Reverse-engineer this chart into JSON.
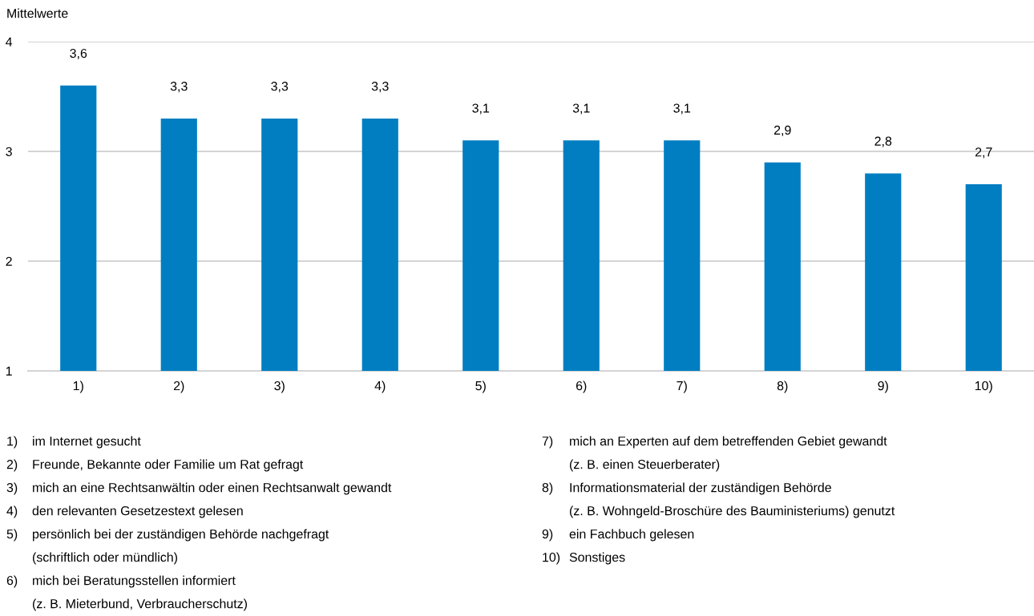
{
  "chart_data": {
    "type": "bar",
    "ylabel": "Mittelwerte",
    "categories": [
      "1)",
      "2)",
      "3)",
      "4)",
      "5)",
      "6)",
      "7)",
      "8)",
      "9)",
      "10)"
    ],
    "values": [
      3.6,
      3.3,
      3.3,
      3.3,
      3.1,
      3.1,
      3.1,
      2.9,
      2.8,
      2.7
    ],
    "value_labels": [
      "3,6",
      "3,3",
      "3,3",
      "3,3",
      "3,1",
      "3,1",
      "3,1",
      "2,9",
      "2,8",
      "2,7"
    ],
    "color": "#007ec1",
    "ylim": [
      1,
      4
    ],
    "yticks": [
      1,
      2,
      3,
      4
    ],
    "grid": "y",
    "annotations": [
      "1) im Internet gesucht",
      "2) Freunde, Bekannte oder Familie um Rat gefragt",
      "3) mich an eine Rechtsanwältin oder einen Rechtsanwalt gewandt",
      "4) den relevanten Gesetzestext gelesen",
      "5) persönlich bei der zuständigen Behörde nachgefragt\n(schriftlich oder mündlich)",
      "6) mich bei Beratungsstellen informiert\n(z. B. Mieterbund, Verbraucherschutz)",
      "7) mich an Experten auf dem betreffenden Gebiet gewandt\n(z. B. einen Steuerberater)",
      "8) Informationsmaterial der zuständigen Behörde\n(z. B. Wohngeld-Broschüre des Bauministeriums) genutzt",
      "9) ein Fachbuch gelesen",
      "10) Sonstiges"
    ]
  }
}
